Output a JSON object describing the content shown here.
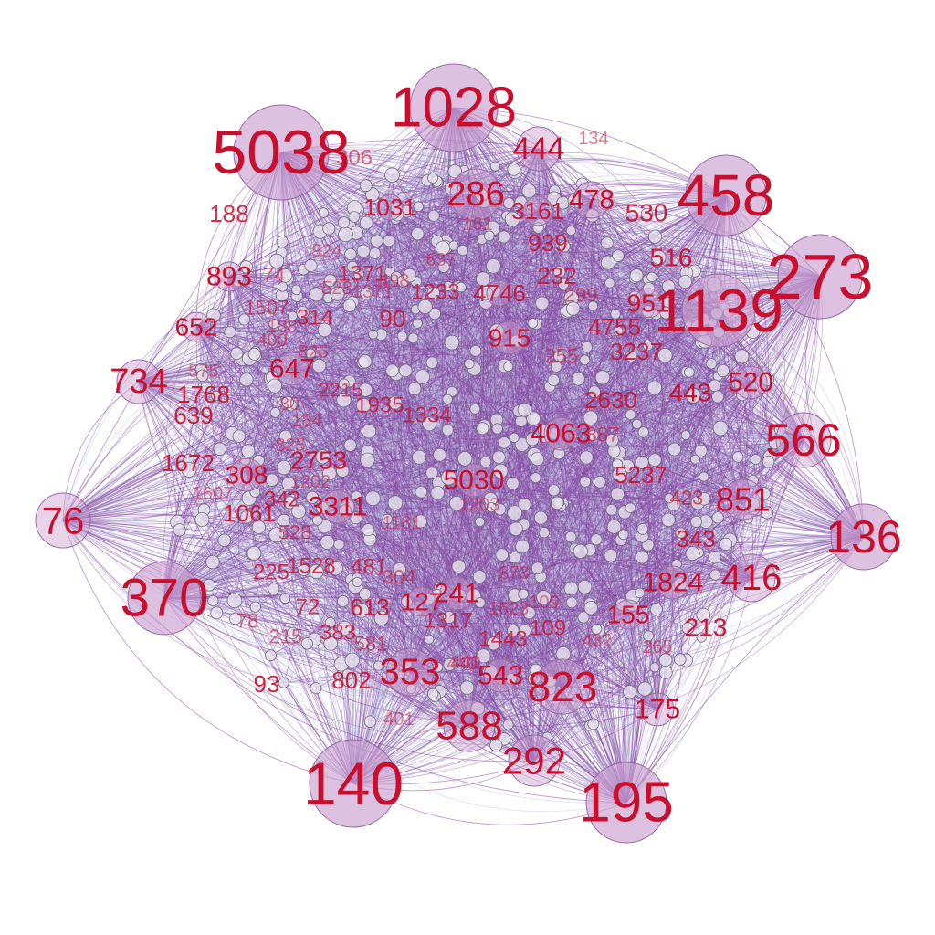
{
  "colors": {
    "background": "#ffffff",
    "edge_light": "#b9bde0",
    "edge_dark": "#8a4fa6",
    "node_fill": "#c9a0cf",
    "node_stroke": "#9b6aa6",
    "label": "#c8102e"
  },
  "graph": {
    "layout": "force-directed hairball",
    "edges": "dense, curved, lavender to purple",
    "hub_nodes": [
      "5038",
      "1028",
      "458",
      "273",
      "1139",
      "566",
      "136",
      "416",
      "195",
      "140",
      "370",
      "76",
      "823",
      "292",
      "588"
    ],
    "labels": [
      "1028",
      "134",
      "444",
      "5038",
      "306",
      "286",
      "3161",
      "478",
      "458",
      "530",
      "188",
      "1031",
      "939",
      "273",
      "516",
      "893",
      "74",
      "1371",
      "4746",
      "232",
      "951",
      "1139",
      "1507",
      "528",
      "1233",
      "299",
      "652",
      "314",
      "90",
      "4755",
      "915",
      "400",
      "3237",
      "255",
      "734",
      "647",
      "520",
      "1768",
      "2215",
      "443",
      "639",
      "1935",
      "1334",
      "2630",
      "4063",
      "566",
      "1672",
      "2753",
      "887",
      "308",
      "5237",
      "5030",
      "851",
      "76",
      "342",
      "3311",
      "1061",
      "423",
      "136",
      "343",
      "528",
      "1528",
      "225",
      "481",
      "304",
      "241",
      "1824",
      "416",
      "370",
      "127",
      "613",
      "72",
      "155",
      "1317",
      "109",
      "213",
      "383",
      "1443",
      "78",
      "215",
      "265",
      "581",
      "353",
      "543",
      "823",
      "93",
      "802",
      "175",
      "588",
      "140",
      "292",
      "195",
      "161",
      "1371",
      "924",
      "637",
      "498",
      "188",
      "826",
      "575",
      "440",
      "80",
      "184",
      "825",
      "1202",
      "1607",
      "1203",
      "1181",
      "873",
      "1623",
      "109",
      "432",
      "440",
      "401"
    ]
  }
}
